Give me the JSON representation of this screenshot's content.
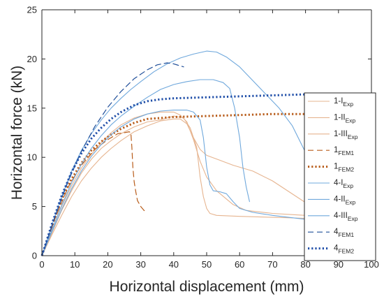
{
  "chart_data": {
    "type": "line",
    "title": "",
    "xlabel": "Horizontal displacement (mm)",
    "ylabel": "Horizontal force (kN)",
    "xlim": [
      0,
      100
    ],
    "ylim": [
      0,
      25
    ],
    "xticks": [
      0,
      10,
      20,
      30,
      40,
      50,
      60,
      70,
      80,
      90,
      100
    ],
    "yticks": [
      0,
      5,
      10,
      15,
      20,
      25
    ],
    "grid": false,
    "legend_position": "right",
    "series": [
      {
        "name": "1-I",
        "sub": "Exp",
        "color": "#e6b48f",
        "style": "solid",
        "width": 1.1,
        "points": [
          [
            0,
            0
          ],
          [
            3,
            2.6
          ],
          [
            6,
            5
          ],
          [
            9,
            7.1
          ],
          [
            12,
            8.9
          ],
          [
            15,
            10.3
          ],
          [
            18,
            11.5
          ],
          [
            21,
            12.5
          ],
          [
            24,
            13.3
          ],
          [
            28,
            14
          ],
          [
            32,
            14.4
          ],
          [
            36,
            14.6
          ],
          [
            40,
            14.6
          ],
          [
            42,
            14.3
          ],
          [
            44,
            13.6
          ],
          [
            46,
            11.8
          ],
          [
            48,
            9.6
          ],
          [
            50,
            8
          ],
          [
            53,
            6.6
          ],
          [
            58,
            5.2
          ],
          [
            62,
            4.6
          ],
          [
            70,
            4.3
          ],
          [
            75,
            4.2
          ],
          [
            80,
            4.1
          ]
        ]
      },
      {
        "name": "1-II",
        "sub": "Exp",
        "color": "#e6b48f",
        "style": "solid",
        "width": 1.1,
        "points": [
          [
            0,
            0
          ],
          [
            3,
            2.3
          ],
          [
            6,
            4.6
          ],
          [
            9,
            6.6
          ],
          [
            12,
            8.4
          ],
          [
            15,
            9.8
          ],
          [
            18,
            10.9
          ],
          [
            21,
            11.7
          ],
          [
            24,
            12.4
          ],
          [
            28,
            13.1
          ],
          [
            32,
            13.6
          ],
          [
            36,
            13.8
          ],
          [
            40,
            14.2
          ],
          [
            43,
            14
          ],
          [
            45,
            13
          ],
          [
            47,
            11
          ],
          [
            48,
            8
          ],
          [
            49,
            6
          ],
          [
            50,
            4.8
          ],
          [
            51,
            4.3
          ],
          [
            53,
            4.1
          ],
          [
            60,
            4
          ],
          [
            70,
            3.9
          ],
          [
            80,
            3.8
          ]
        ]
      },
      {
        "name": "1-III",
        "sub": "Exp",
        "color": "#e6b48f",
        "style": "solid",
        "width": 1.1,
        "points": [
          [
            0,
            0
          ],
          [
            3,
            2.1
          ],
          [
            6,
            4.1
          ],
          [
            9,
            6
          ],
          [
            12,
            7.6
          ],
          [
            15,
            8.9
          ],
          [
            18,
            10
          ],
          [
            21,
            10.9
          ],
          [
            24,
            11.7
          ],
          [
            28,
            12.6
          ],
          [
            32,
            13.2
          ],
          [
            36,
            13.7
          ],
          [
            40,
            13.9
          ],
          [
            42,
            13.9
          ],
          [
            44,
            13.4
          ],
          [
            46,
            12
          ],
          [
            48,
            10.8
          ],
          [
            50,
            10.2
          ],
          [
            54,
            9.7
          ],
          [
            58,
            9.2
          ],
          [
            64,
            8.6
          ],
          [
            70,
            7.6
          ],
          [
            75,
            6.5
          ],
          [
            80,
            5.4
          ]
        ]
      },
      {
        "name": "1",
        "sub": "FEM1",
        "color": "#b85c1a",
        "style": "dash",
        "width": 1.2,
        "points": [
          [
            0,
            0
          ],
          [
            4,
            3.8
          ],
          [
            8,
            7
          ],
          [
            12,
            9.2
          ],
          [
            16,
            10.8
          ],
          [
            20,
            11.8
          ],
          [
            23,
            12.4
          ],
          [
            25,
            12.5
          ],
          [
            26.5,
            12.6
          ],
          [
            27,
            12.5
          ],
          [
            27.3,
            11
          ],
          [
            27.6,
            9
          ],
          [
            28,
            7.5
          ],
          [
            28.5,
            6.5
          ],
          [
            29,
            5.6
          ],
          [
            30,
            5
          ],
          [
            31,
            4.6
          ],
          [
            32,
            4.4
          ]
        ]
      },
      {
        "name": "1",
        "sub": "FEM2",
        "color": "#b85c1a",
        "style": "dot",
        "width": 3,
        "points": [
          [
            0,
            0
          ],
          [
            3,
            3
          ],
          [
            6,
            5.7
          ],
          [
            9,
            7.8
          ],
          [
            12,
            9.4
          ],
          [
            15,
            10.7
          ],
          [
            18,
            11.6
          ],
          [
            21,
            12.3
          ],
          [
            24,
            12.9
          ],
          [
            28,
            13.5
          ],
          [
            32,
            13.9
          ],
          [
            36,
            14
          ],
          [
            40,
            14.1
          ],
          [
            50,
            14.2
          ],
          [
            60,
            14.3
          ],
          [
            70,
            14.4
          ],
          [
            80,
            14.4
          ]
        ]
      },
      {
        "name": "4-I",
        "sub": "Exp",
        "color": "#6fa8dc",
        "style": "solid",
        "width": 1.1,
        "points": [
          [
            0,
            0
          ],
          [
            3,
            3.1
          ],
          [
            6,
            6
          ],
          [
            9,
            8.6
          ],
          [
            12,
            10.7
          ],
          [
            15,
            12.4
          ],
          [
            18,
            13.8
          ],
          [
            21,
            15
          ],
          [
            24,
            16
          ],
          [
            27,
            16.9
          ],
          [
            30,
            17.7
          ],
          [
            34,
            18.7
          ],
          [
            38,
            19.5
          ],
          [
            42,
            20.1
          ],
          [
            46,
            20.5
          ],
          [
            50,
            20.8
          ],
          [
            53,
            20.7
          ],
          [
            56,
            20.2
          ],
          [
            60,
            19.2
          ],
          [
            64,
            17.8
          ],
          [
            68,
            16.4
          ],
          [
            72,
            15
          ],
          [
            76,
            13.2
          ],
          [
            80,
            10.5
          ]
        ]
      },
      {
        "name": "4-II",
        "sub": "Exp",
        "color": "#6fa8dc",
        "style": "solid",
        "width": 1.1,
        "points": [
          [
            0,
            0
          ],
          [
            3,
            2.6
          ],
          [
            6,
            5.1
          ],
          [
            9,
            7.4
          ],
          [
            12,
            9.3
          ],
          [
            15,
            10.9
          ],
          [
            18,
            12.2
          ],
          [
            21,
            13.3
          ],
          [
            24,
            14.2
          ],
          [
            28,
            15.2
          ],
          [
            32,
            16.1
          ],
          [
            36,
            16.9
          ],
          [
            40,
            17.4
          ],
          [
            44,
            17.7
          ],
          [
            48,
            17.9
          ],
          [
            52,
            17.9
          ],
          [
            55,
            17.6
          ],
          [
            57,
            17
          ],
          [
            58.5,
            15
          ],
          [
            60,
            12
          ],
          [
            61,
            9
          ],
          [
            62,
            7
          ],
          [
            63,
            5.5
          ]
        ]
      },
      {
        "name": "4-III",
        "sub": "Exp",
        "color": "#6fa8dc",
        "style": "solid",
        "width": 1.1,
        "points": [
          [
            0,
            0
          ],
          [
            3,
            2.4
          ],
          [
            6,
            4.7
          ],
          [
            9,
            6.8
          ],
          [
            12,
            8.6
          ],
          [
            15,
            10.1
          ],
          [
            18,
            11.3
          ],
          [
            21,
            12.3
          ],
          [
            24,
            13.1
          ],
          [
            28,
            13.9
          ],
          [
            32,
            14.4
          ],
          [
            36,
            14.7
          ],
          [
            40,
            14.8
          ],
          [
            44,
            14.8
          ],
          [
            46,
            14.6
          ],
          [
            48,
            13.8
          ],
          [
            49,
            12
          ],
          [
            50,
            9
          ],
          [
            51,
            7.2
          ],
          [
            52,
            6.6
          ],
          [
            54,
            6.5
          ],
          [
            56,
            6.3
          ],
          [
            58,
            5.5
          ],
          [
            60,
            4.8
          ],
          [
            64,
            4.4
          ],
          [
            70,
            4.1
          ],
          [
            80,
            3.7
          ]
        ]
      },
      {
        "name": "4",
        "sub": "FEM1",
        "color": "#1f4e99",
        "style": "dash",
        "width": 1.2,
        "points": [
          [
            0,
            0
          ],
          [
            4,
            4
          ],
          [
            8,
            7.6
          ],
          [
            12,
            10.6
          ],
          [
            16,
            13.1
          ],
          [
            20,
            15.1
          ],
          [
            24,
            16.7
          ],
          [
            28,
            18
          ],
          [
            32,
            18.9
          ],
          [
            35,
            19.4
          ],
          [
            38,
            19.6
          ],
          [
            40,
            19.5
          ],
          [
            42,
            19.3
          ],
          [
            43,
            19.2
          ]
        ]
      },
      {
        "name": "4",
        "sub": "FEM2",
        "color": "#1f4ea8",
        "style": "dot",
        "width": 3,
        "points": [
          [
            0,
            0
          ],
          [
            3,
            3.2
          ],
          [
            6,
            6.1
          ],
          [
            9,
            8.5
          ],
          [
            12,
            10.4
          ],
          [
            15,
            11.9
          ],
          [
            18,
            13
          ],
          [
            21,
            13.9
          ],
          [
            24,
            14.6
          ],
          [
            28,
            15.3
          ],
          [
            32,
            15.7
          ],
          [
            36,
            15.9
          ],
          [
            40,
            16
          ],
          [
            50,
            16.1
          ],
          [
            60,
            16.2
          ],
          [
            70,
            16.3
          ],
          [
            80,
            16.4
          ]
        ]
      }
    ]
  }
}
